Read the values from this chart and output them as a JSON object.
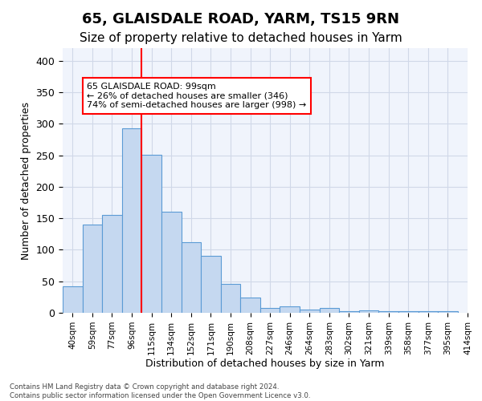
{
  "title": "65, GLAISDALE ROAD, YARM, TS15 9RN",
  "subtitle": "Size of property relative to detached houses in Yarm",
  "xlabel": "Distribution of detached houses by size in Yarm",
  "ylabel": "Number of detached properties",
  "categories": [
    "40sqm",
    "59sqm",
    "77sqm",
    "96sqm",
    "115sqm",
    "134sqm",
    "152sqm",
    "171sqm",
    "190sqm",
    "208sqm",
    "227sqm",
    "246sqm",
    "264sqm",
    "283sqm",
    "302sqm",
    "321sqm",
    "339sqm",
    "358sqm",
    "377sqm",
    "395sqm"
  ],
  "values": [
    42,
    140,
    155,
    293,
    251,
    160,
    112,
    91,
    46,
    24,
    8,
    10,
    5,
    8,
    3,
    4,
    2,
    3,
    2,
    2
  ],
  "extra_tick": "414sqm",
  "bar_color": "#c5d8f0",
  "bar_edge_color": "#5b9bd5",
  "red_line_x": 3.5,
  "annotation_text": "65 GLAISDALE ROAD: 99sqm\n← 26% of detached houses are smaller (346)\n74% of semi-detached houses are larger (998) →",
  "annotation_box_color": "white",
  "annotation_box_edge_color": "red",
  "footnote": "Contains HM Land Registry data © Crown copyright and database right 2024.\nContains public sector information licensed under the Open Government Licence v3.0.",
  "ylim": [
    0,
    420
  ],
  "yticks": [
    0,
    50,
    100,
    150,
    200,
    250,
    300,
    350,
    400
  ],
  "title_fontsize": 13,
  "subtitle_fontsize": 11,
  "bar_width": 1.0,
  "grid_color": "#d0d8e8",
  "background_color": "#f0f4fc"
}
